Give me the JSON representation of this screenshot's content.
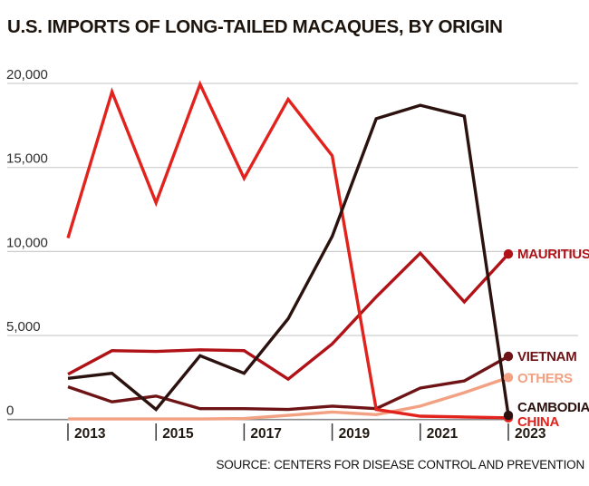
{
  "title": "U.S. IMPORTS OF LONG-TAILED MACAQUES, BY ORIGIN",
  "source": "SOURCE: CENTERS FOR DISEASE CONTROL AND PREVENTION",
  "colors": {
    "title": "#1c140d",
    "grid": "#cdcdcd",
    "zero_axis": "#8a8a8a",
    "tick": "#3a3a3a",
    "year_label": "#221a12",
    "value_label": "#2e2e2e",
    "background": "#ffffff"
  },
  "chart_data": {
    "type": "line",
    "title": "U.S. IMPORTS OF LONG-TAILED MACAQUES, BY ORIGIN",
    "xlabel": "",
    "ylabel": "",
    "x": [
      2013,
      2014,
      2015,
      2016,
      2017,
      2018,
      2019,
      2020,
      2021,
      2022,
      2023
    ],
    "x_tick_years": [
      2013,
      2015,
      2017,
      2019,
      2021,
      2023
    ],
    "x_tick_labels": [
      "2013",
      "2015",
      "2017",
      "2019",
      "2021",
      "2023"
    ],
    "ylim": [
      0,
      20000
    ],
    "y_ticks": [
      0,
      5000,
      10000,
      15000,
      20000
    ],
    "y_tick_labels": [
      "0",
      "5,000",
      "10,000",
      "15,000",
      "20,000"
    ],
    "grid": true,
    "legend_position": "right-end-labels",
    "series": [
      {
        "name": "MAURITIUS",
        "color": "#b01217",
        "values": [
          2700,
          4100,
          4050,
          4150,
          4100,
          2400,
          4500,
          7300,
          9900,
          7000,
          9850
        ]
      },
      {
        "name": "VIETNAM",
        "color": "#6e1416",
        "values": [
          1950,
          1050,
          1400,
          650,
          650,
          600,
          800,
          650,
          1870,
          2300,
          3760
        ]
      },
      {
        "name": "OTHERS",
        "color": "#f3a183",
        "values": [
          30,
          30,
          30,
          30,
          60,
          250,
          450,
          290,
          800,
          1600,
          2500
        ]
      },
      {
        "name": "CAMBODIA",
        "color": "#2b120e",
        "values": [
          2450,
          2750,
          600,
          3800,
          2750,
          6000,
          10900,
          17900,
          18700,
          18050,
          250
        ]
      },
      {
        "name": "CHINA",
        "color": "#e2231d",
        "values": [
          10800,
          19500,
          12900,
          19950,
          14350,
          19050,
          15700,
          600,
          200,
          150,
          100
        ]
      }
    ]
  }
}
